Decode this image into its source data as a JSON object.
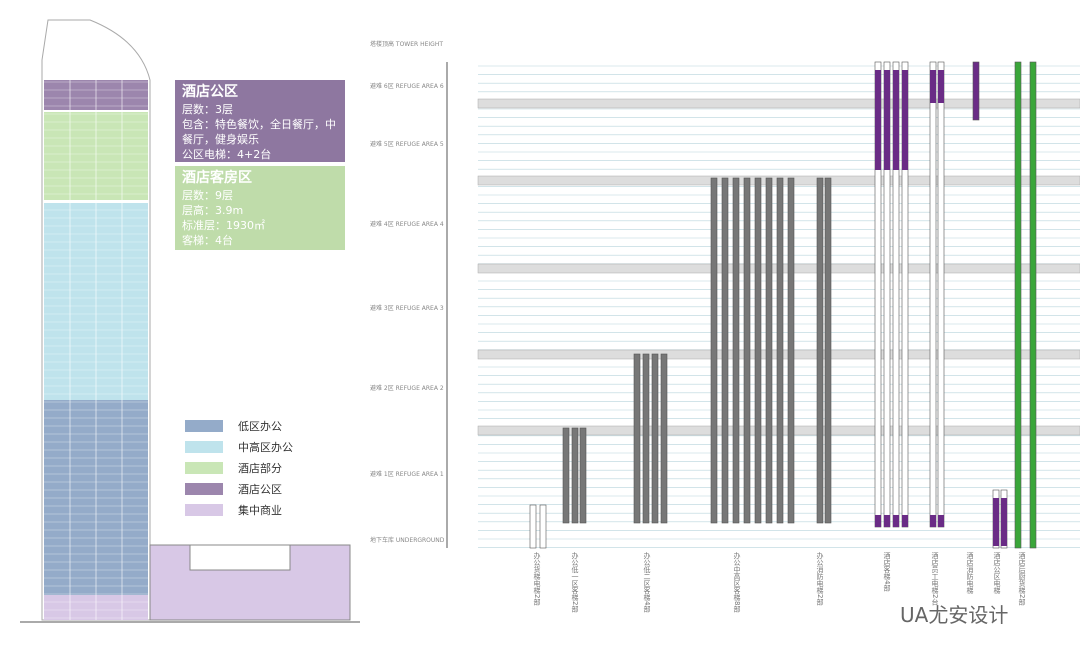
{
  "info_boxes": [
    {
      "title": "酒店公区",
      "lines": [
        "层数：3层",
        "包含：特色餐饮，全日餐厅，中",
        "餐厅，健身娱乐",
        "公区电梯：4+2台"
      ],
      "color": "#8e77a0"
    },
    {
      "title": "酒店客房区",
      "lines": [
        "层数：9层",
        "层高：3.9m",
        "标准层：1930㎡",
        "客梯：4台"
      ],
      "color": "#bfdcaa"
    }
  ],
  "legend": [
    {
      "label": "低区办公",
      "color": "#94abc9"
    },
    {
      "label": "中高区办公",
      "color": "#bfe3ec"
    },
    {
      "label": "酒店部分",
      "color": "#c9e6b6"
    },
    {
      "label": "酒店公区",
      "color": "#9c86ad"
    },
    {
      "label": "集中商业",
      "color": "#d8c8e6"
    }
  ],
  "zone_labels": [
    "塔楼顶高 TOWER HEIGHT",
    "避难 6区 REFUGE AREA 6",
    "避难 5区 REFUGE AREA 5",
    "避难 4区 REFUGE AREA 4",
    "避难 3区 REFUGE AREA 3",
    "避难 2区 REFUGE AREA 2",
    "避难 1区 REFUGE AREA 1",
    "地下车库 UNDERGROUND"
  ],
  "elevator_labels": [
    "办公货梯电梯2部",
    "办公低一区客梯2部",
    "办公低二区客梯4部",
    "办公中高区客梯8部",
    "办公消防电梯2部",
    "酒店客梯4部",
    "酒店员工电梯2台",
    "酒店消防电梯",
    "酒店公区电梯",
    "酒店后厨货梯2部"
  ],
  "watermark": "UA尤安设计"
}
